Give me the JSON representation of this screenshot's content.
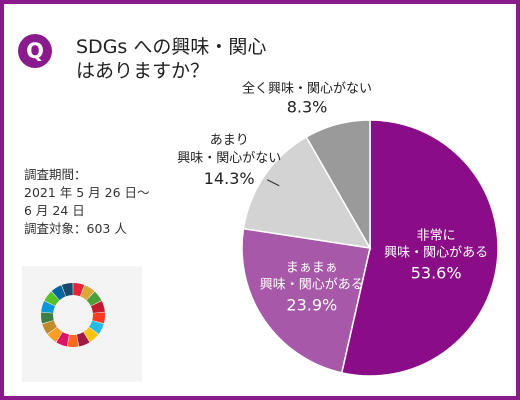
{
  "question": {
    "badge": "Q",
    "line1": "SDGs への興味・関心",
    "line2": "はありますか？"
  },
  "survey": {
    "period_label": "調査期間：",
    "period_line1": "2021 年 5 月 26 日〜",
    "period_line2": " 6 月 24 日",
    "respondents": "調査対象：603 人"
  },
  "colors": {
    "frame": "#8a1b8c",
    "slice_1": "#8a0d87",
    "slice_2": "#a758a9",
    "slice_3": "#d3d3d3",
    "slice_4": "#9a9a9a"
  },
  "chart_data": {
    "type": "pie",
    "title": "",
    "start": "12 o'clock, clockwise",
    "slices": [
      {
        "label_line1": "非常に",
        "label_line2": "興味・関心がある",
        "value": 53.6,
        "value_label": "53.6%"
      },
      {
        "label_line1": "まぁまぁ",
        "label_line2": "興味・関心がある",
        "value": 23.9,
        "value_label": "23.9%"
      },
      {
        "label_line1": "あまり",
        "label_line2": "興味・関心がない",
        "value": 14.3,
        "value_label": "14.3%"
      },
      {
        "label_line1": "全く興味・関心がない",
        "label_line2": "",
        "value": 8.3,
        "value_label": "8.3%"
      }
    ]
  },
  "sdg_logo": {
    "segment_colors": [
      "#e5243b",
      "#dda63a",
      "#4c9f38",
      "#c5192d",
      "#ff3a21",
      "#26bde2",
      "#fcc30b",
      "#a21942",
      "#fd6925",
      "#dd1367",
      "#fd9d24",
      "#bf8b2e",
      "#3f7e44",
      "#0a97d9",
      "#56c02b",
      "#00689d",
      "#19486a"
    ]
  }
}
